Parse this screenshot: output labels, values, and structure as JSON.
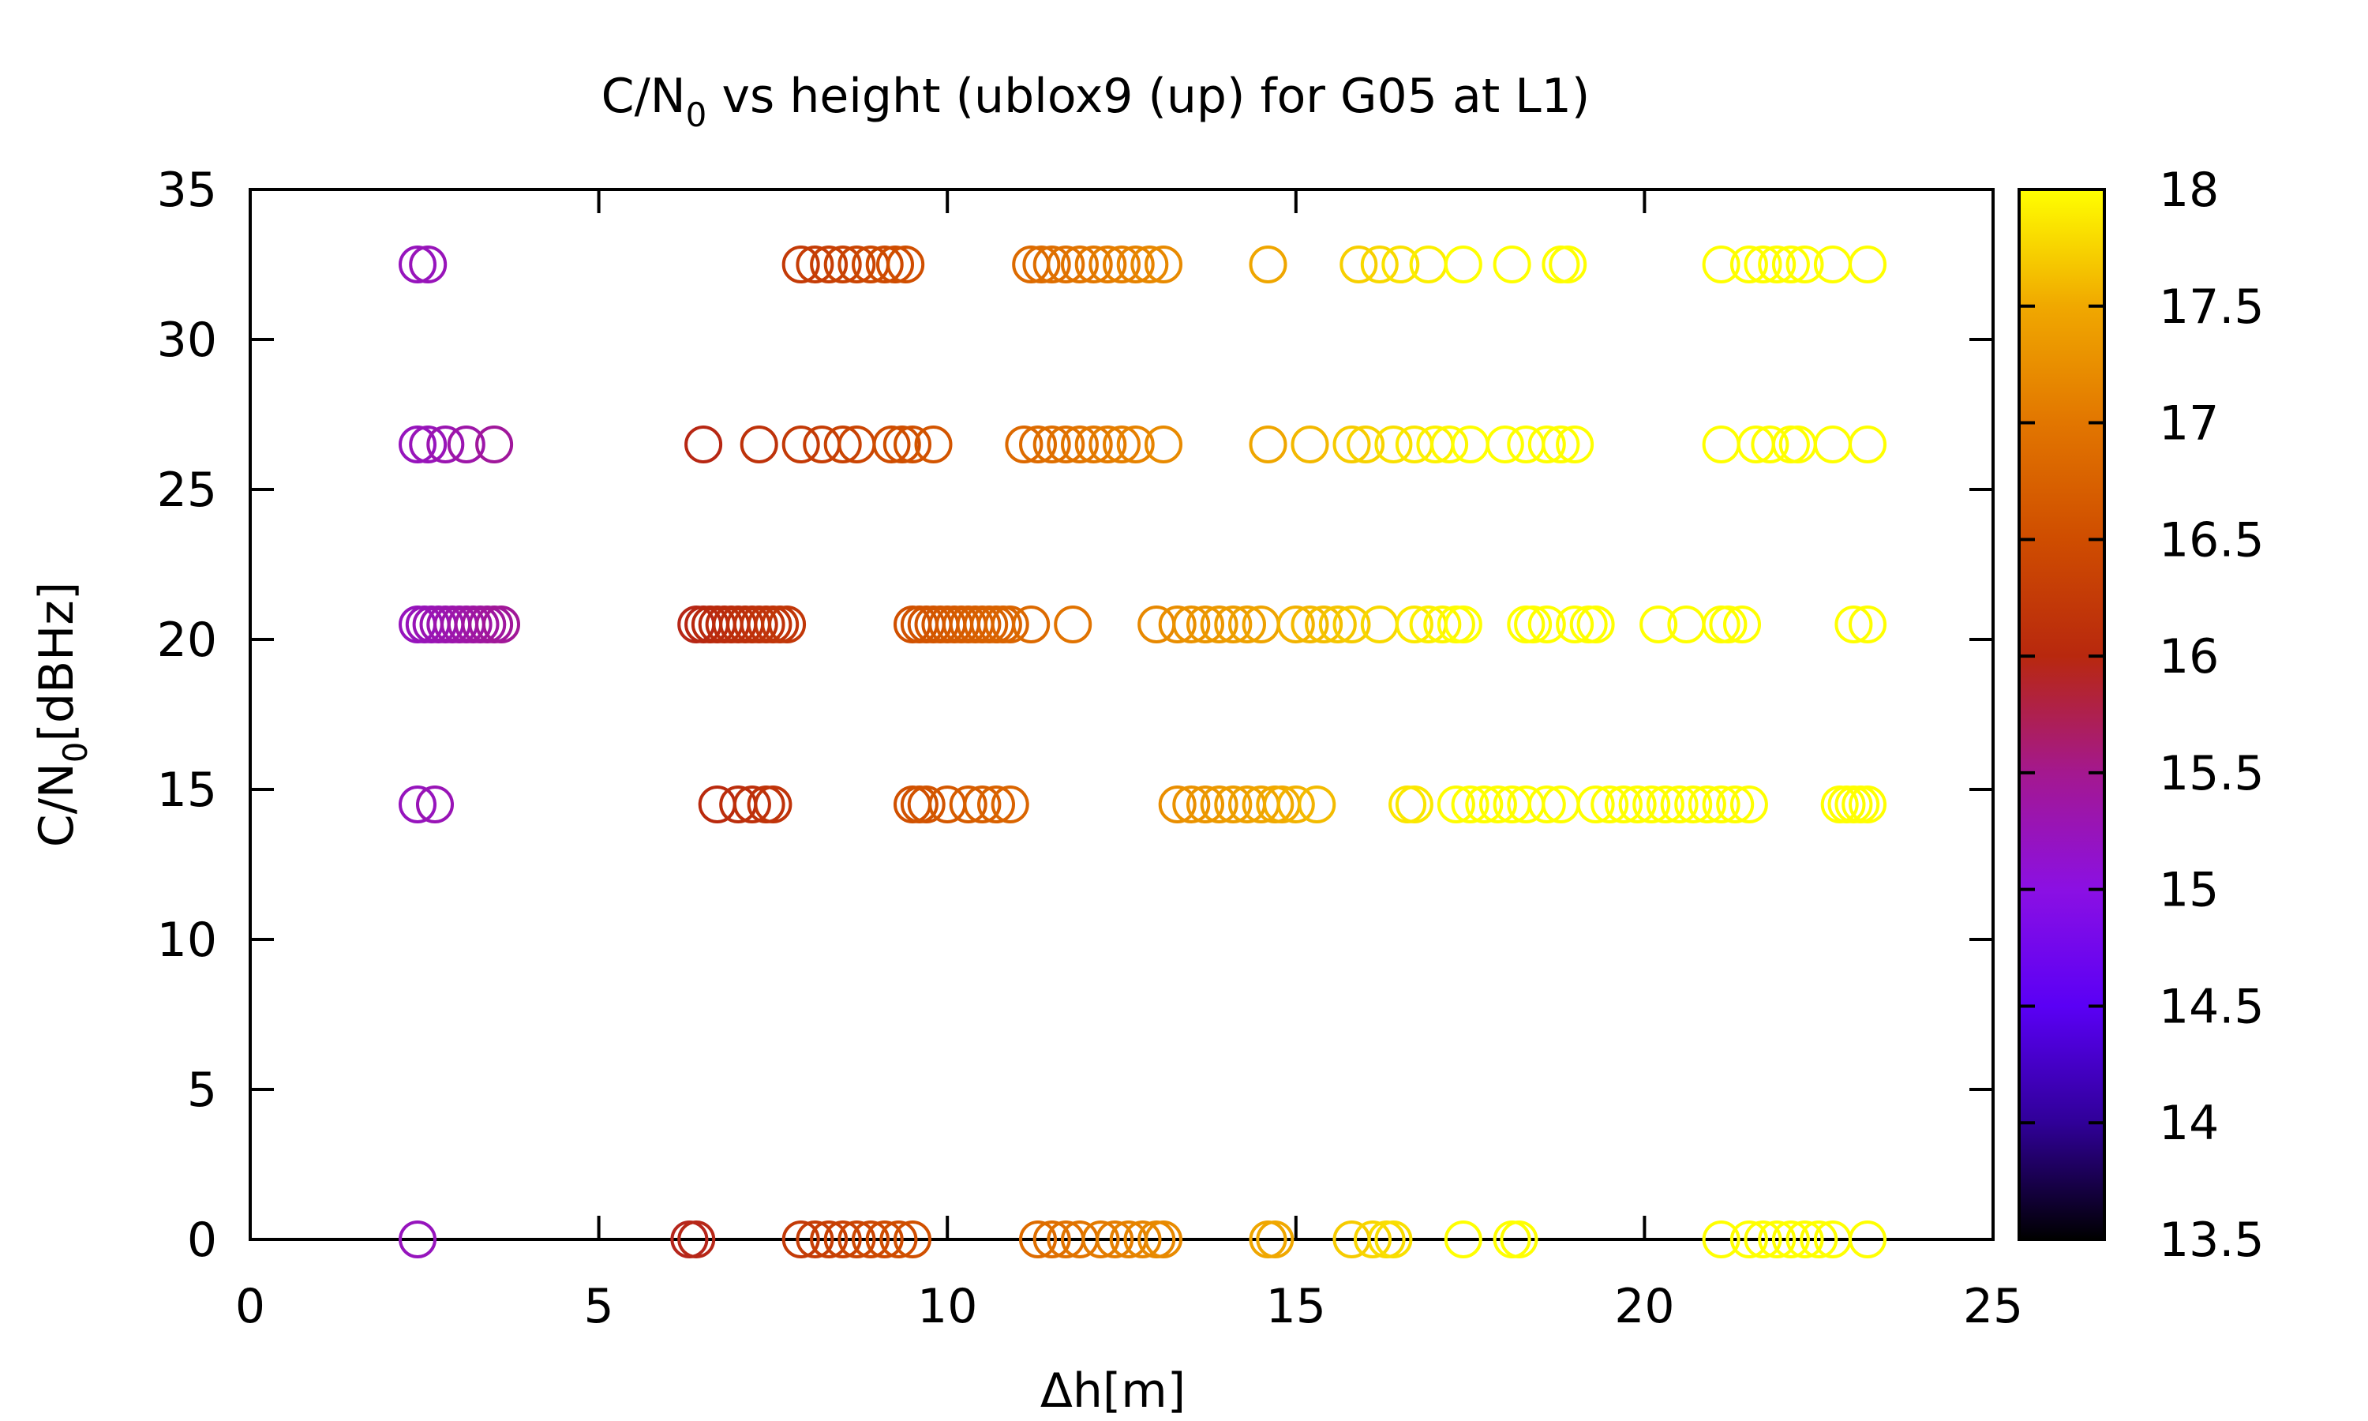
{
  "chart_data": {
    "type": "scatter",
    "title": {
      "prefix": "C/N",
      "subscript": "0",
      "suffix": " vs height (ublox9 (up) for G05 at L1)"
    },
    "xlabel": "Δh[m]",
    "ylabel": {
      "prefix": "C/N",
      "subscript": "0",
      "suffix": "[dBHz]"
    },
    "xlim": [
      0,
      25
    ],
    "ylim": [
      0,
      35
    ],
    "x_ticks": [
      0,
      5,
      10,
      15,
      20,
      25
    ],
    "x_tick_labels": [
      "0",
      "5",
      "10",
      "15",
      "20",
      "25"
    ],
    "y_ticks": [
      0,
      5,
      10,
      15,
      20,
      25,
      30,
      35
    ],
    "y_tick_labels": [
      "0",
      "5",
      "10",
      "15",
      "20",
      "25",
      "30",
      "35"
    ],
    "grid": false,
    "marker": "open-circle",
    "colorbar": {
      "min": 13.5,
      "max": 18,
      "ticks": [
        13.5,
        14,
        14.5,
        15,
        15.5,
        16,
        16.5,
        17,
        17.5,
        18
      ],
      "tick_labels": [
        "13.5",
        "14",
        "14.5",
        "15",
        "15.5",
        "16",
        "16.5",
        "17",
        "17.5",
        "18"
      ],
      "palette": [
        "#000000",
        "#300098",
        "#5a00f5",
        "#8b10e3",
        "#a4188f",
        "#b8280e",
        "#cf4d00",
        "#e27600",
        "#f0a800",
        "#ffff00"
      ]
    },
    "rows": [
      {
        "y": 32.5,
        "x": [
          2.4,
          2.55,
          7.9,
          8.1,
          8.3,
          8.5,
          8.7,
          8.9,
          9.1,
          9.25,
          9.4,
          11.2,
          11.35,
          11.5,
          11.7,
          11.9,
          12.1,
          12.3,
          12.5,
          12.7,
          12.9,
          13.1,
          14.6,
          15.9,
          16.2,
          16.5,
          16.9,
          17.4,
          18.1,
          18.8,
          18.9,
          21.1,
          21.5,
          21.7,
          21.9,
          22.1,
          22.3,
          22.7,
          23.2
        ]
      },
      {
        "y": 26.5,
        "x": [
          2.4,
          2.55,
          2.8,
          3.1,
          3.5,
          6.5,
          7.3,
          7.9,
          8.2,
          8.5,
          8.7,
          9.2,
          9.35,
          9.5,
          9.8,
          11.1,
          11.3,
          11.5,
          11.7,
          11.9,
          12.1,
          12.3,
          12.5,
          12.7,
          13.1,
          14.6,
          15.2,
          15.8,
          16.0,
          16.4,
          16.7,
          17.0,
          17.2,
          17.5,
          18.0,
          18.3,
          18.6,
          18.8,
          19.0,
          21.1,
          21.6,
          21.8,
          22.1,
          22.2,
          22.7,
          23.2
        ]
      },
      {
        "y": 20.5,
        "x": [
          2.4,
          2.5,
          2.6,
          2.7,
          2.8,
          2.9,
          3.0,
          3.1,
          3.2,
          3.3,
          3.4,
          3.5,
          3.6,
          6.4,
          6.5,
          6.6,
          6.7,
          6.8,
          6.9,
          7.0,
          7.1,
          7.2,
          7.3,
          7.4,
          7.5,
          7.6,
          7.7,
          9.5,
          9.6,
          9.7,
          9.8,
          9.9,
          10.0,
          10.1,
          10.2,
          10.3,
          10.4,
          10.5,
          10.6,
          10.7,
          10.8,
          10.9,
          11.2,
          11.8,
          13.0,
          13.3,
          13.5,
          13.7,
          13.9,
          14.1,
          14.3,
          14.5,
          15.0,
          15.2,
          15.4,
          15.6,
          15.8,
          16.2,
          16.7,
          16.9,
          17.1,
          17.3,
          17.4,
          18.3,
          18.4,
          18.6,
          19.0,
          19.2,
          19.3,
          20.2,
          20.6,
          21.1,
          21.2,
          21.4,
          23.0,
          23.2
        ]
      },
      {
        "y": 14.5,
        "x": [
          2.4,
          2.65,
          6.7,
          7.0,
          7.2,
          7.4,
          7.5,
          9.5,
          9.6,
          9.7,
          10.0,
          10.3,
          10.5,
          10.7,
          10.9,
          13.3,
          13.5,
          13.7,
          13.9,
          14.1,
          14.3,
          14.5,
          14.7,
          14.8,
          15.0,
          15.3,
          16.6,
          16.7,
          17.3,
          17.5,
          17.7,
          17.9,
          18.1,
          18.3,
          18.6,
          18.8,
          19.3,
          19.5,
          19.7,
          19.9,
          20.1,
          20.3,
          20.5,
          20.7,
          20.9,
          21.1,
          21.3,
          21.5,
          22.8,
          22.9,
          23.0,
          23.1,
          23.2
        ]
      },
      {
        "y": 0,
        "x": [
          2.4,
          6.3,
          6.4,
          7.9,
          8.1,
          8.3,
          8.5,
          8.7,
          8.9,
          9.1,
          9.3,
          9.5,
          11.3,
          11.5,
          11.7,
          11.9,
          12.2,
          12.4,
          12.6,
          12.8,
          13.0,
          13.1,
          14.6,
          14.7,
          15.8,
          16.1,
          16.3,
          16.4,
          17.4,
          18.1,
          18.2,
          21.1,
          21.5,
          21.7,
          21.9,
          22.1,
          22.3,
          22.5,
          22.7,
          23.2
        ]
      }
    ]
  }
}
